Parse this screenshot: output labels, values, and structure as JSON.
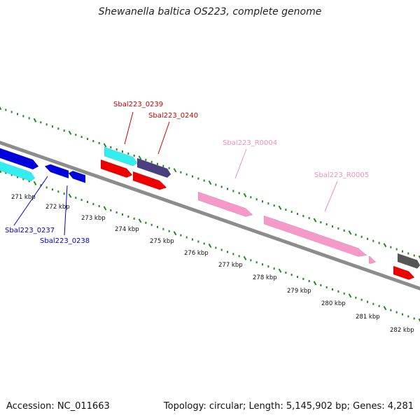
{
  "header": {
    "title": "Shewanella baltica OS223, complete genome"
  },
  "footer": {
    "accession": "Accession: NC_011663",
    "summary": "Topology: circular; Length: 5,145,902 bp; Genes: 4,281"
  },
  "colors": {
    "backbone": "#8c8c8c",
    "tick": "#1e8c1e",
    "gene_blue": "#0000dd",
    "gene_cyan": "#33eeee",
    "gene_red": "#ee0000",
    "gene_slate": "#4a4080",
    "gene_pink": "#f59ac8",
    "gene_grey": "#555555",
    "label_blue": "#0000cc",
    "label_red": "#cc0000",
    "label_pink": "#f28dbf"
  },
  "scale": {
    "unit": "kbp",
    "labels": [
      "271 kbp",
      "272 kbp",
      "273 kbp",
      "274 kbp",
      "275 kbp",
      "276 kbp",
      "277 kbp",
      "278 kbp",
      "279 kbp",
      "280 kbp",
      "281 kbp",
      "282 kbp"
    ]
  },
  "gene_labels": [
    {
      "text": "Sbal223_0237",
      "color": "label_blue"
    },
    {
      "text": "Sbal223_0238",
      "color": "label_blue"
    },
    {
      "text": "Sbal223_0239",
      "color": "label_red"
    },
    {
      "text": "Sbal223_0240",
      "color": "label_red"
    },
    {
      "text": "Sbal223_R0004",
      "color": "label_pink"
    },
    {
      "text": "Sbal223_R0005",
      "color": "label_pink"
    }
  ]
}
